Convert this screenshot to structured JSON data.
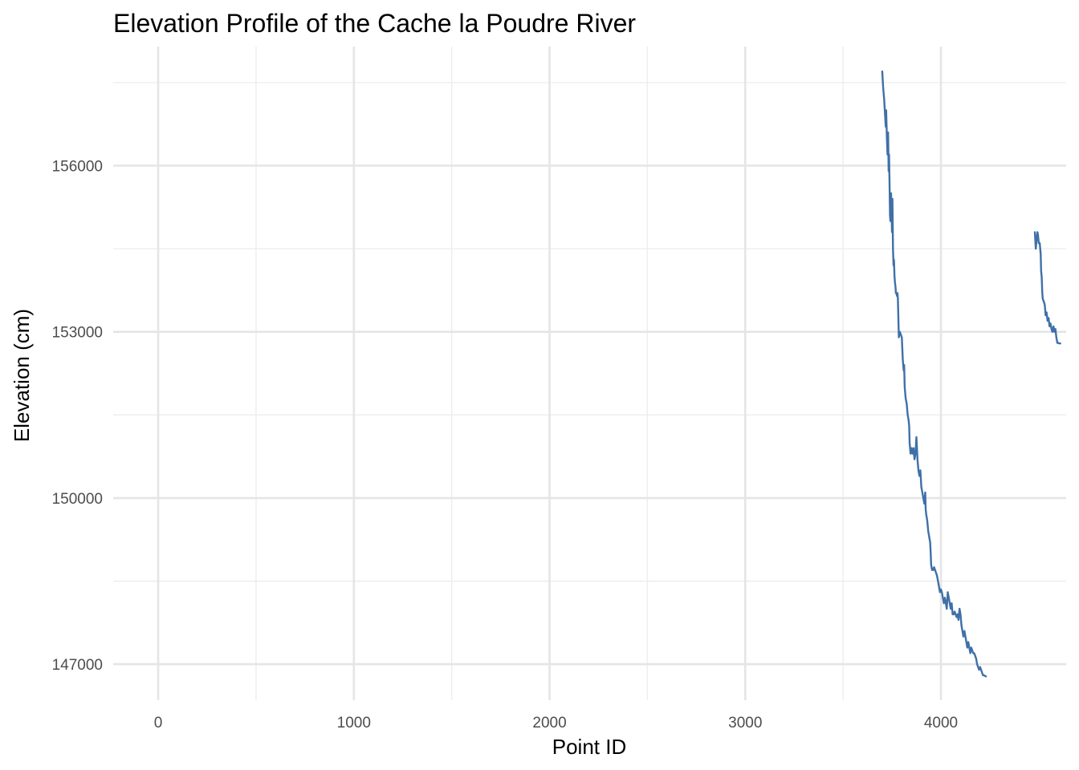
{
  "chart_data": {
    "type": "line",
    "title": "Elevation Profile of the Cache la Poudre River",
    "xlabel": "Point ID",
    "ylabel": "Elevation (cm)",
    "xlim": [
      -230,
      4640
    ],
    "ylim": [
      146350,
      158150
    ],
    "x_ticks": [
      0,
      1000,
      2000,
      3000,
      4000
    ],
    "y_ticks": [
      147000,
      150000,
      153000,
      156000
    ],
    "x_minor": [
      500,
      1500,
      2500,
      3500
    ],
    "y_minor": [
      148500,
      151500,
      154500,
      157500
    ],
    "grid": true,
    "legend": "none",
    "color": "#3f70a8",
    "series": [
      {
        "segments": [
          {
            "x": [
              3700,
              3705,
              3710,
              3715,
              3718,
              3720,
              3724,
              3727,
              3730,
              3733,
              3735,
              3738,
              3740,
              3742,
              3745,
              3748,
              3750,
              3752,
              3755,
              3758,
              3760,
              3763,
              3765,
              3768,
              3770,
              3773,
              3775,
              3778,
              3780,
              3785,
              3790,
              3800,
              3805,
              3810,
              3812,
              3815,
              3820,
              3825,
              3830,
              3835,
              3838,
              3840,
              3845,
              3850,
              3855,
              3860,
              3865,
              3870,
              3875,
              3880,
              3885,
              3890,
              3895,
              3900,
              3905,
              3910,
              3915,
              3920,
              3922,
              3925,
              3930,
              3935,
              3940,
              3945,
              3948,
              3950,
              3955,
              3960,
              3965,
              3970,
              3975,
              3980,
              3985,
              3990,
              3995,
              4000,
              4005,
              4010,
              4015,
              4020,
              4025,
              4030,
              4035,
              4040,
              4045,
              4050,
              4055,
              4060,
              4065,
              4070,
              4075,
              4080,
              4085,
              4090,
              4095,
              4100,
              4105,
              4110,
              4115,
              4120,
              4125,
              4130,
              4135,
              4140,
              4145,
              4150,
              4155,
              4160,
              4165,
              4170,
              4175,
              4180,
              4185,
              4190,
              4195,
              4200,
              4205,
              4210,
              4215,
              4220,
              4225,
              4230
            ],
            "y": [
              157700,
              157400,
              157200,
              156900,
              156700,
              157000,
              156500,
              156200,
              156600,
              155900,
              156200,
              155600,
              155100,
              155000,
              155500,
              155100,
              154800,
              155400,
              154500,
              154200,
              154300,
              154000,
              153900,
              153800,
              153700,
              153700,
              153650,
              153700,
              153600,
              152900,
              153000,
              152900,
              152500,
              152300,
              152400,
              152000,
              151800,
              151700,
              151500,
              151400,
              151300,
              151000,
              150800,
              150900,
              150800,
              150900,
              150700,
              150800,
              151100,
              150700,
              150500,
              150400,
              150500,
              150200,
              150100,
              150000,
              149900,
              150100,
              149800,
              149700,
              149600,
              149400,
              149300,
              149200,
              149000,
              148800,
              148700,
              148700,
              148750,
              148700,
              148650,
              148600,
              148500,
              148400,
              148300,
              148350,
              148300,
              148200,
              148100,
              148200,
              148100,
              148000,
              148300,
              148200,
              148100,
              148000,
              148100,
              147900,
              147900,
              147950,
              147900,
              147850,
              147900,
              147800,
              148000,
              147900,
              147700,
              147600,
              147500,
              147600,
              147500,
              147400,
              147300,
              147400,
              147300,
              147200,
              147300,
              147250,
              147200,
              147200,
              147150,
              147100,
              147000,
              146950,
              146900,
              146950,
              146900,
              146850,
              146800,
              146800,
              146790,
              146780
            ]
          },
          {
            "x": [
              4480,
              4485,
              4490,
              4493,
              4496,
              4500,
              4505,
              4510,
              4512,
              4515,
              4518,
              4520,
              4525,
              4530,
              4533,
              4535,
              4540,
              4545,
              4550,
              4555,
              4560,
              4565,
              4570,
              4575,
              4580,
              4585,
              4590,
              4595,
              4600,
              4605,
              4610
            ],
            "y": [
              154800,
              154500,
              154700,
              154800,
              154750,
              154600,
              154600,
              154400,
              154100,
              154000,
              153700,
              153600,
              153550,
              153500,
              153400,
              153300,
              153350,
              153200,
              153250,
              153100,
              153150,
              153050,
              153000,
              153100,
              153000,
              153050,
              152900,
              152800,
              152800,
              152790,
              152790
            ]
          }
        ]
      }
    ]
  }
}
